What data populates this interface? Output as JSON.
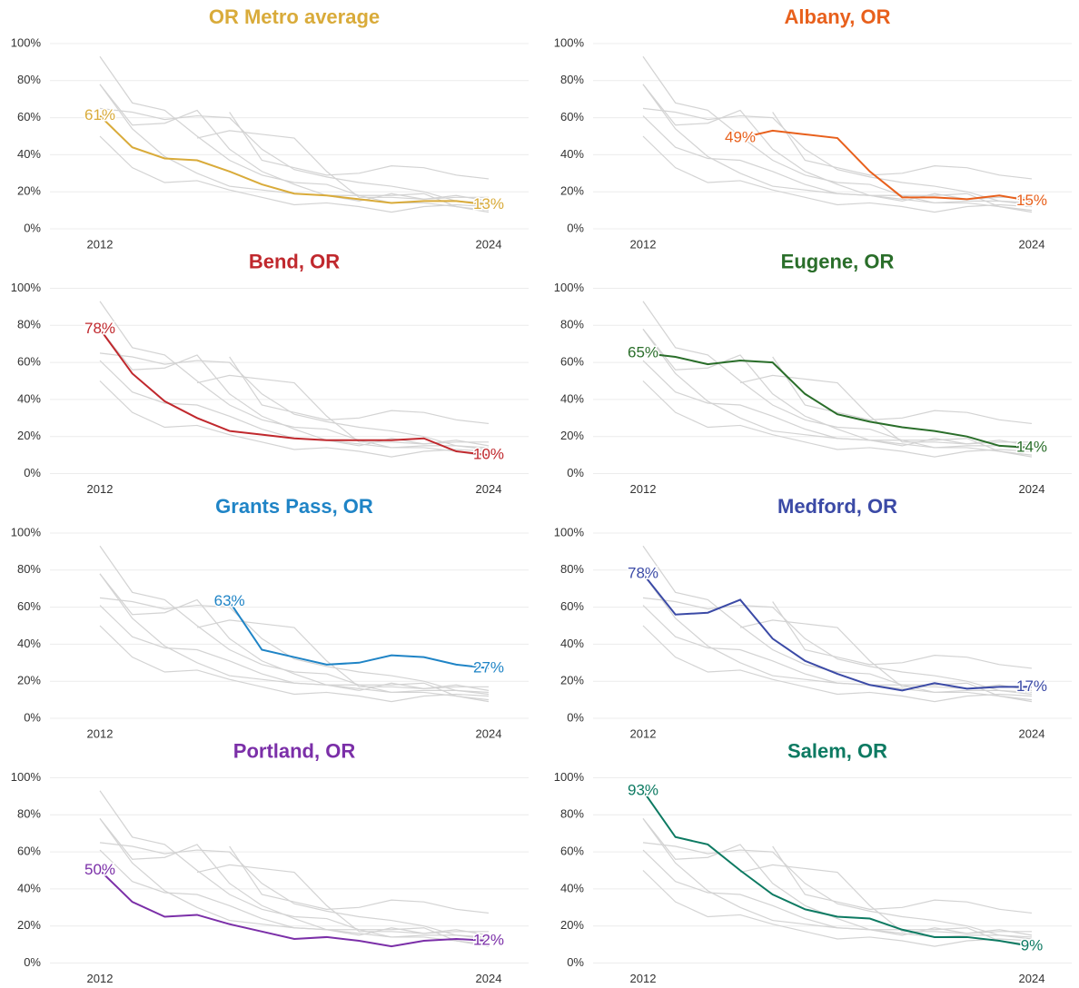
{
  "chart_data": {
    "type": "line",
    "x": [
      2012,
      2013,
      2014,
      2015,
      2016,
      2017,
      2018,
      2019,
      2020,
      2021,
      2022,
      2023,
      2024
    ],
    "xticks": [
      2012,
      2024
    ],
    "ylim": [
      0,
      100
    ],
    "yticks": [
      {
        "value": 0,
        "label": "0%"
      },
      {
        "value": 20,
        "label": "20%"
      },
      {
        "value": 40,
        "label": "40%"
      },
      {
        "value": 60,
        "label": "60%"
      },
      {
        "value": 80,
        "label": "80%"
      },
      {
        "value": 100,
        "label": "100%"
      }
    ],
    "grid": true,
    "background_color": "#d3d3d3",
    "series": [
      {
        "name": "OR Metro average",
        "color": "#d9ab3a",
        "values": [
          61,
          44,
          38,
          37,
          31,
          24,
          19,
          18,
          16,
          14,
          15,
          15,
          13
        ],
        "value_labels": [
          "61%",
          null,
          null,
          null,
          null,
          null,
          null,
          null,
          null,
          null,
          null,
          null,
          "13%"
        ]
      },
      {
        "name": "Albany, OR",
        "color": "#e8601c",
        "values": [
          null,
          null,
          null,
          49,
          53,
          51,
          49,
          31,
          17,
          17,
          16,
          18,
          15
        ],
        "value_labels": [
          null,
          null,
          null,
          "49%",
          null,
          null,
          null,
          null,
          null,
          null,
          null,
          null,
          "15%"
        ]
      },
      {
        "name": "Bend, OR",
        "color": "#c0282d",
        "values": [
          78,
          54,
          39,
          30,
          23,
          21,
          19,
          18,
          18,
          18,
          19,
          12,
          10
        ],
        "value_labels": [
          "78%",
          null,
          null,
          null,
          null,
          null,
          null,
          null,
          null,
          null,
          null,
          null,
          "10%"
        ]
      },
      {
        "name": "Eugene, OR",
        "color": "#2a6e2a",
        "values": [
          65,
          63,
          59,
          61,
          60,
          43,
          32,
          28,
          25,
          23,
          20,
          15,
          14
        ],
        "value_labels": [
          "65%",
          null,
          null,
          null,
          null,
          null,
          null,
          null,
          null,
          null,
          null,
          null,
          "14%"
        ]
      },
      {
        "name": "Grants Pass, OR",
        "color": "#1f84c6",
        "values": [
          null,
          null,
          null,
          null,
          63,
          37,
          33,
          29,
          30,
          34,
          33,
          29,
          27
        ],
        "value_labels": [
          null,
          null,
          null,
          null,
          "63%",
          null,
          null,
          null,
          null,
          null,
          null,
          null,
          "27%"
        ]
      },
      {
        "name": "Medford, OR",
        "color": "#3b4aa6",
        "values": [
          78,
          56,
          57,
          64,
          43,
          31,
          24,
          18,
          15,
          19,
          16,
          17,
          17
        ],
        "value_labels": [
          "78%",
          null,
          null,
          null,
          null,
          null,
          null,
          null,
          null,
          null,
          null,
          null,
          "17%"
        ]
      },
      {
        "name": "Portland, OR",
        "color": "#7b2fa8",
        "values": [
          50,
          33,
          25,
          26,
          21,
          17,
          13,
          14,
          12,
          9,
          12,
          13,
          12
        ],
        "value_labels": [
          "50%",
          null,
          null,
          null,
          null,
          null,
          null,
          null,
          null,
          null,
          null,
          null,
          "12%"
        ]
      },
      {
        "name": "Salem, OR",
        "color": "#0d7a62",
        "values": [
          93,
          68,
          64,
          50,
          37,
          29,
          25,
          24,
          18,
          14,
          14,
          12,
          9
        ],
        "value_labels": [
          "93%",
          null,
          null,
          null,
          null,
          null,
          null,
          null,
          null,
          null,
          null,
          null,
          "9%"
        ]
      }
    ]
  }
}
